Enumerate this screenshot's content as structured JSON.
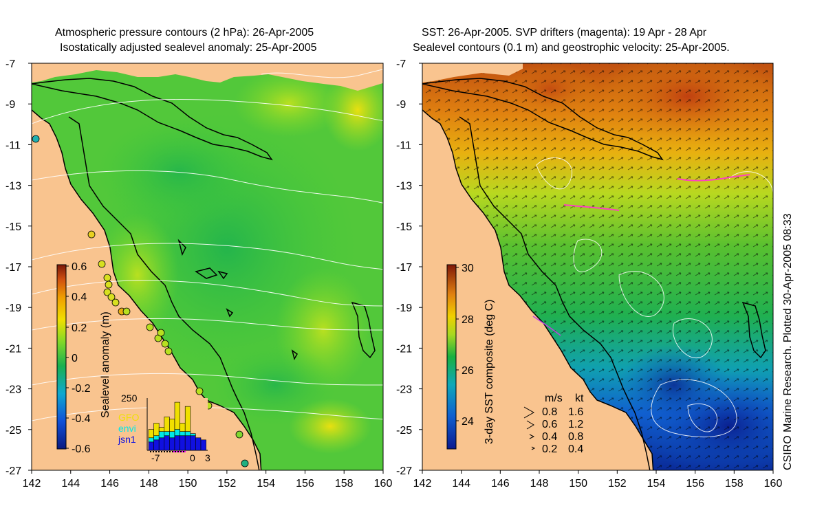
{
  "left_panel": {
    "title_line1": "Atmospheric pressure contours (2 hPa): 26-Apr-2005",
    "title_line2": "Isostatically adjusted sealevel anomaly: 25-Apr-2005",
    "colorbar": {
      "label": "Sealevel anomaly (m)",
      "ticks": [
        "0.6",
        "0.4",
        "0.2",
        "0",
        "-0.2",
        "-0.4",
        "-0.6"
      ]
    },
    "inset": {
      "ytick": "250",
      "xticks": [
        "-7",
        "0",
        "3"
      ],
      "legend": [
        {
          "label": "GFO",
          "color": "#f0e000"
        },
        {
          "label": "envi",
          "color": "#00e8e8"
        },
        {
          "label": "jsn1",
          "color": "#1010e0"
        }
      ],
      "bars": [
        {
          "gfo": 40,
          "envi": 20,
          "jsn1": 40
        },
        {
          "gfo": 60,
          "envi": 20,
          "jsn1": 50
        },
        {
          "gfo": 20,
          "envi": 30,
          "jsn1": 60
        },
        {
          "gfo": 70,
          "envi": 20,
          "jsn1": 70
        },
        {
          "gfo": 60,
          "envi": 30,
          "jsn1": 60
        },
        {
          "gfo": 130,
          "envi": 30,
          "jsn1": 70
        },
        {
          "gfo": 40,
          "envi": 20,
          "jsn1": 70
        },
        {
          "gfo": 120,
          "envi": 20,
          "jsn1": 70
        },
        {
          "gfo": 0,
          "envi": 10,
          "jsn1": 70
        },
        {
          "gfo": 0,
          "envi": 0,
          "jsn1": 60
        },
        {
          "gfo": 0,
          "envi": 0,
          "jsn1": 50
        }
      ]
    }
  },
  "right_panel": {
    "title_line1": "SST: 26-Apr-2005. SVP drifters (magenta): 19 Apr - 28 Apr",
    "title_line2": "Sealevel contours (0.1 m) and geostrophic velocity: 25-Apr-2005.",
    "colorbar": {
      "label": "3-day SST composite (deg C)",
      "ticks": [
        "30",
        "28",
        "26",
        "24"
      ]
    },
    "velocity_key": {
      "header_ms": "m/s",
      "header_kt": "kt",
      "rows": [
        {
          "ms": "0.8",
          "kt": "1.6"
        },
        {
          "ms": "0.6",
          "kt": "1.2"
        },
        {
          "ms": "0.4",
          "kt": "0.8"
        },
        {
          "ms": "0.2",
          "kt": "0.4"
        }
      ]
    }
  },
  "axes": {
    "lat_ticks": [
      "-7",
      "-9",
      "-11",
      "-13",
      "-15",
      "-17",
      "-19",
      "-21",
      "-23",
      "-25",
      "-27"
    ],
    "lon_ticks": [
      "142",
      "144",
      "146",
      "148",
      "150",
      "152",
      "154",
      "156",
      "158",
      "160"
    ]
  },
  "credit": "CSIRO Marine Research. Plotted 30-Apr-2005 08:33",
  "colors": {
    "land": "#f9c48f",
    "sla_ramp": [
      "#0a2a8a",
      "#1a6ad8",
      "#10b0c0",
      "#18b850",
      "#44cc30",
      "#a8e020",
      "#f0e000",
      "#f0a000",
      "#d85010",
      "#8a1a08"
    ],
    "sst_ramp": [
      "#0a1a90",
      "#1050d0",
      "#10a0c8",
      "#18b040",
      "#60c830",
      "#d8e010",
      "#f0b000",
      "#e07010",
      "#b83010",
      "#801808"
    ]
  }
}
